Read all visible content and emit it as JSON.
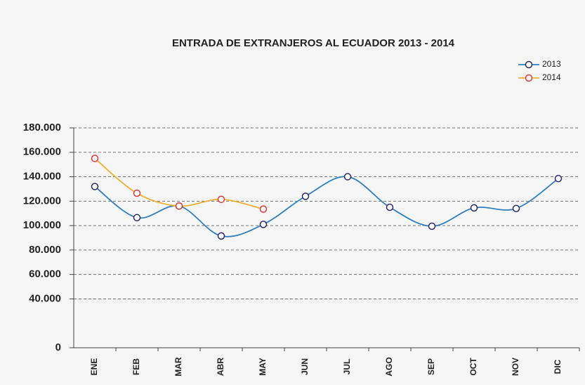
{
  "chart_data": {
    "type": "line",
    "title": "ENTRADA DE EXTRANJEROS AL ECUADOR 2013 - 2014",
    "categories": [
      "ENE",
      "FEB",
      "MAR",
      "ABR",
      "MAY",
      "JUN",
      "JUL",
      "AGO",
      "SEP",
      "OCT",
      "NOV",
      "DIC"
    ],
    "series": [
      {
        "name": "2013",
        "color": "#2f7fc1",
        "marker_color": "#2a2a6a",
        "values": [
          132000,
          106500,
          116000,
          91500,
          101000,
          124000,
          140000,
          115000,
          99500,
          114500,
          114000,
          138500
        ]
      },
      {
        "name": "2014",
        "color": "#f0b030",
        "marker_color": "#d83a3a",
        "values": [
          155000,
          126500,
          116000,
          121500,
          113500,
          null,
          null,
          null,
          null,
          null,
          null,
          null
        ]
      }
    ],
    "ylim": [
      0,
      180000
    ],
    "yticks": [
      0,
      {
        "value": 40000,
        "label": "40.000"
      },
      {
        "value": 60000,
        "label": "60.000"
      },
      {
        "value": 80000,
        "label": "80.000"
      },
      {
        "value": 100000,
        "label": "100.000"
      },
      {
        "value": 120000,
        "label": "120.000"
      },
      {
        "value": 140000,
        "label": "140.000"
      },
      {
        "value": 160000,
        "label": "160.000"
      },
      {
        "value": 180000,
        "label": "180.000"
      }
    ],
    "grid": true,
    "smooth": true,
    "legend": "top-right"
  }
}
